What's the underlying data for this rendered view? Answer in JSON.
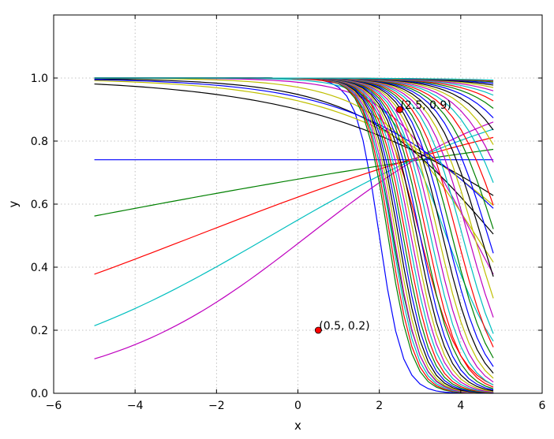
{
  "chart_data": {
    "type": "line",
    "title": "",
    "xlabel": "x",
    "ylabel": "y",
    "xlim": [
      -6,
      6
    ],
    "ylim": [
      0.0,
      1.2
    ],
    "xticks": [
      -6,
      -4,
      -2,
      0,
      2,
      4,
      6
    ],
    "xtick_labels": [
      "−6",
      "−4",
      "−2",
      "0",
      "2",
      "4",
      "6"
    ],
    "yticks": [
      0.0,
      0.2,
      0.4,
      0.6,
      0.8,
      1.0
    ],
    "ytick_labels": [
      "0.0",
      "0.2",
      "0.4",
      "0.6",
      "0.8",
      "1.0"
    ],
    "grid": true,
    "legend": "none",
    "color_cycle": [
      "#0000ff",
      "#008000",
      "#ff0000",
      "#00bfbf",
      "#bf00bf",
      "#bfbf00",
      "#000000"
    ],
    "x_range": [
      -5.0,
      4.8
    ],
    "x_step": 0.2,
    "series_description": "family of sigmoid curves y = 1/(1+exp(-(a*x+b))) fitted progressively toward the points (0.5, 0.2) and (2.5, 0.9)",
    "series_params": [
      {
        "a": -3.5,
        "b": 7.0
      },
      {
        "a": -3.0,
        "b": 7.0
      },
      {
        "a": -2.0,
        "b": 6.0
      },
      {
        "a": -1.4,
        "b": 5.1
      },
      {
        "a": -1.0,
        "b": 4.3
      },
      {
        "a": -0.8,
        "b": 3.5
      },
      {
        "a": -0.6,
        "b": 2.9
      },
      {
        "a": 0.0,
        "b": 1.05
      },
      {
        "a": 0.1,
        "b": 0.75
      },
      {
        "a": 0.2,
        "b": 0.5
      },
      {
        "a": 0.3,
        "b": 0.2
      },
      {
        "a": 0.4,
        "b": -0.1
      },
      {
        "a": -0.45,
        "b": 2.55
      },
      {
        "a": -0.35,
        "b": 2.2
      },
      {
        "a": -0.5,
        "b": 2.75
      }
    ],
    "annotations": [
      {
        "x": 2.5,
        "y": 0.9,
        "text": "(2.5, 0.9)",
        "color": "#ff0000"
      },
      {
        "x": 0.5,
        "y": 0.2,
        "text": "(0.5, 0.2)",
        "color": "#ff0000"
      }
    ]
  }
}
